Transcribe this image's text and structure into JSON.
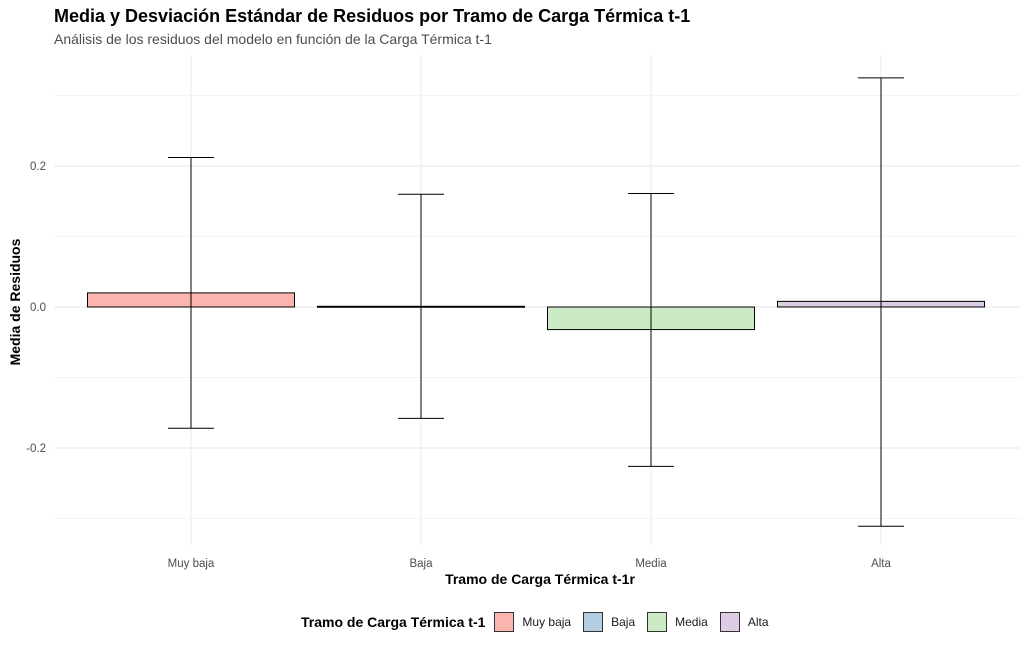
{
  "chart_data": {
    "type": "bar",
    "title": "Media y Desviación Estándar de Residuos por Tramo de Carga Térmica t-1",
    "subtitle": "Análisis de los residuos del modelo en función de la Carga Térmica t-1",
    "xlabel": "Tramo de Carga Térmica t-1r",
    "ylabel": "Media de Residuos",
    "categories": [
      "Muy baja",
      "Baja",
      "Media",
      "Alta"
    ],
    "values": [
      0.02,
      0.001,
      -0.032,
      0.008
    ],
    "error_low": [
      -0.172,
      -0.158,
      -0.226,
      -0.311
    ],
    "error_high": [
      0.212,
      0.16,
      0.161,
      0.325
    ],
    "colors": [
      "#FBB4AE",
      "#B3CDE3",
      "#CCEBC5",
      "#DECBE4"
    ],
    "ylim": [
      -0.3,
      0.3
    ],
    "yticks": [
      -0.2,
      0.0,
      0.2
    ],
    "ytick_labels": [
      "-0.2",
      "0.0",
      "0.2"
    ],
    "grid": true,
    "legend": {
      "title": "Tramo de Carga Térmica t-1",
      "position": "bottom",
      "entries": [
        "Muy baja",
        "Baja",
        "Media",
        "Alta"
      ]
    }
  }
}
